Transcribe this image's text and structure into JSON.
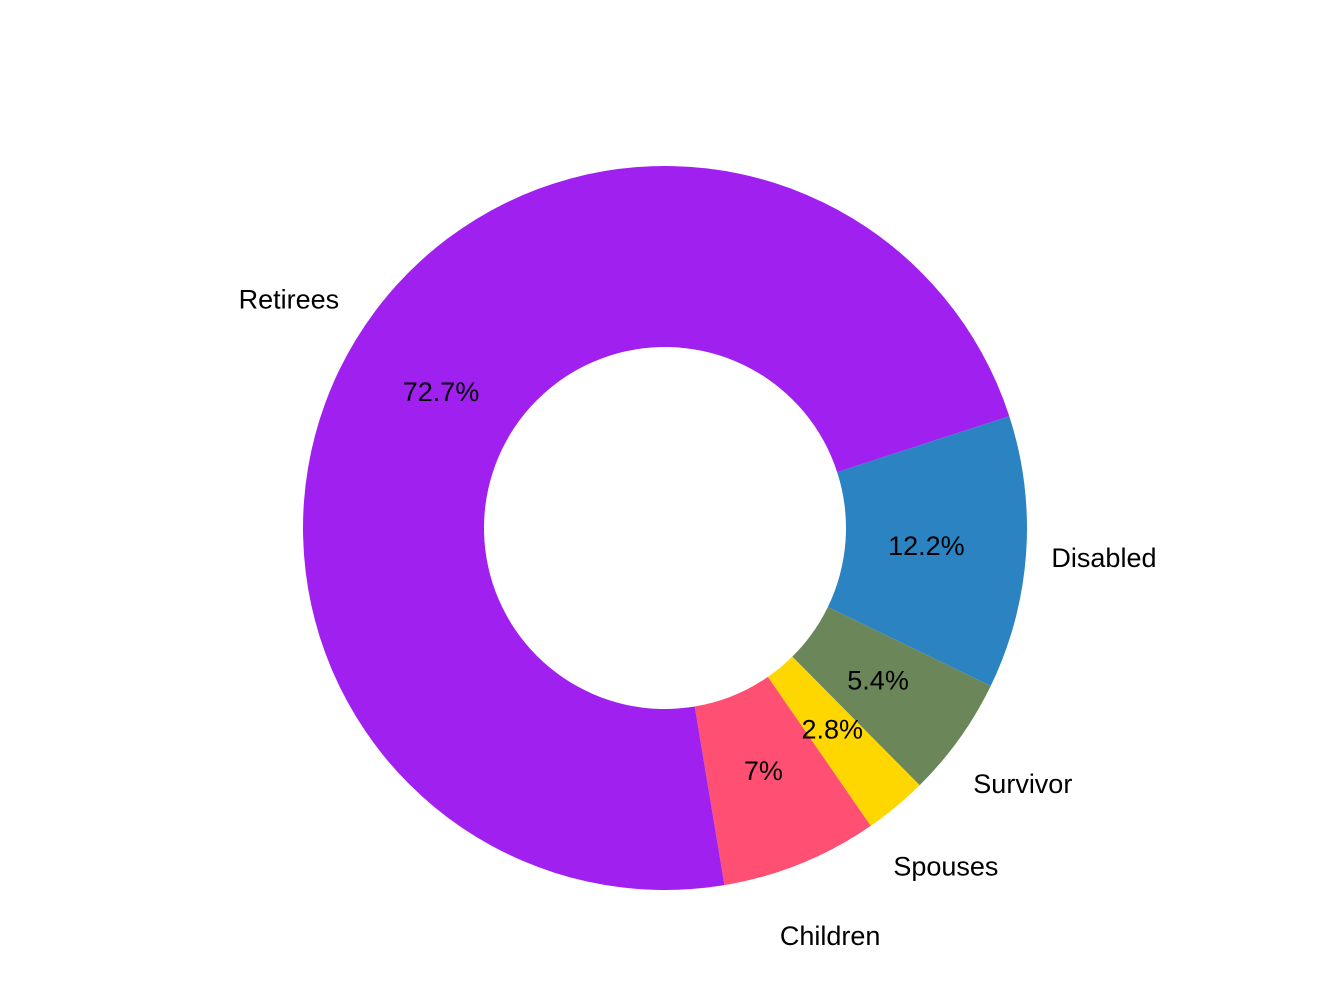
{
  "chart_data": {
    "type": "pie",
    "subtype": "donut",
    "title": "",
    "legend": "none",
    "slices": [
      {
        "label": "Disabled",
        "value": 12.2,
        "value_label": "12.2%",
        "color": "#2B83C1"
      },
      {
        "label": "Survivor",
        "value": 5.4,
        "value_label": "5.4%",
        "color": "#6B875A"
      },
      {
        "label": "Spouses",
        "value": 2.8,
        "value_label": "2.8%",
        "color": "#FFD700"
      },
      {
        "label": "Children",
        "value": 7.0,
        "value_label": "7%",
        "color": "#FF4F72"
      },
      {
        "label": "Retirees",
        "value": 72.7,
        "value_label": "72.7%",
        "color": "#A020F0"
      }
    ]
  }
}
